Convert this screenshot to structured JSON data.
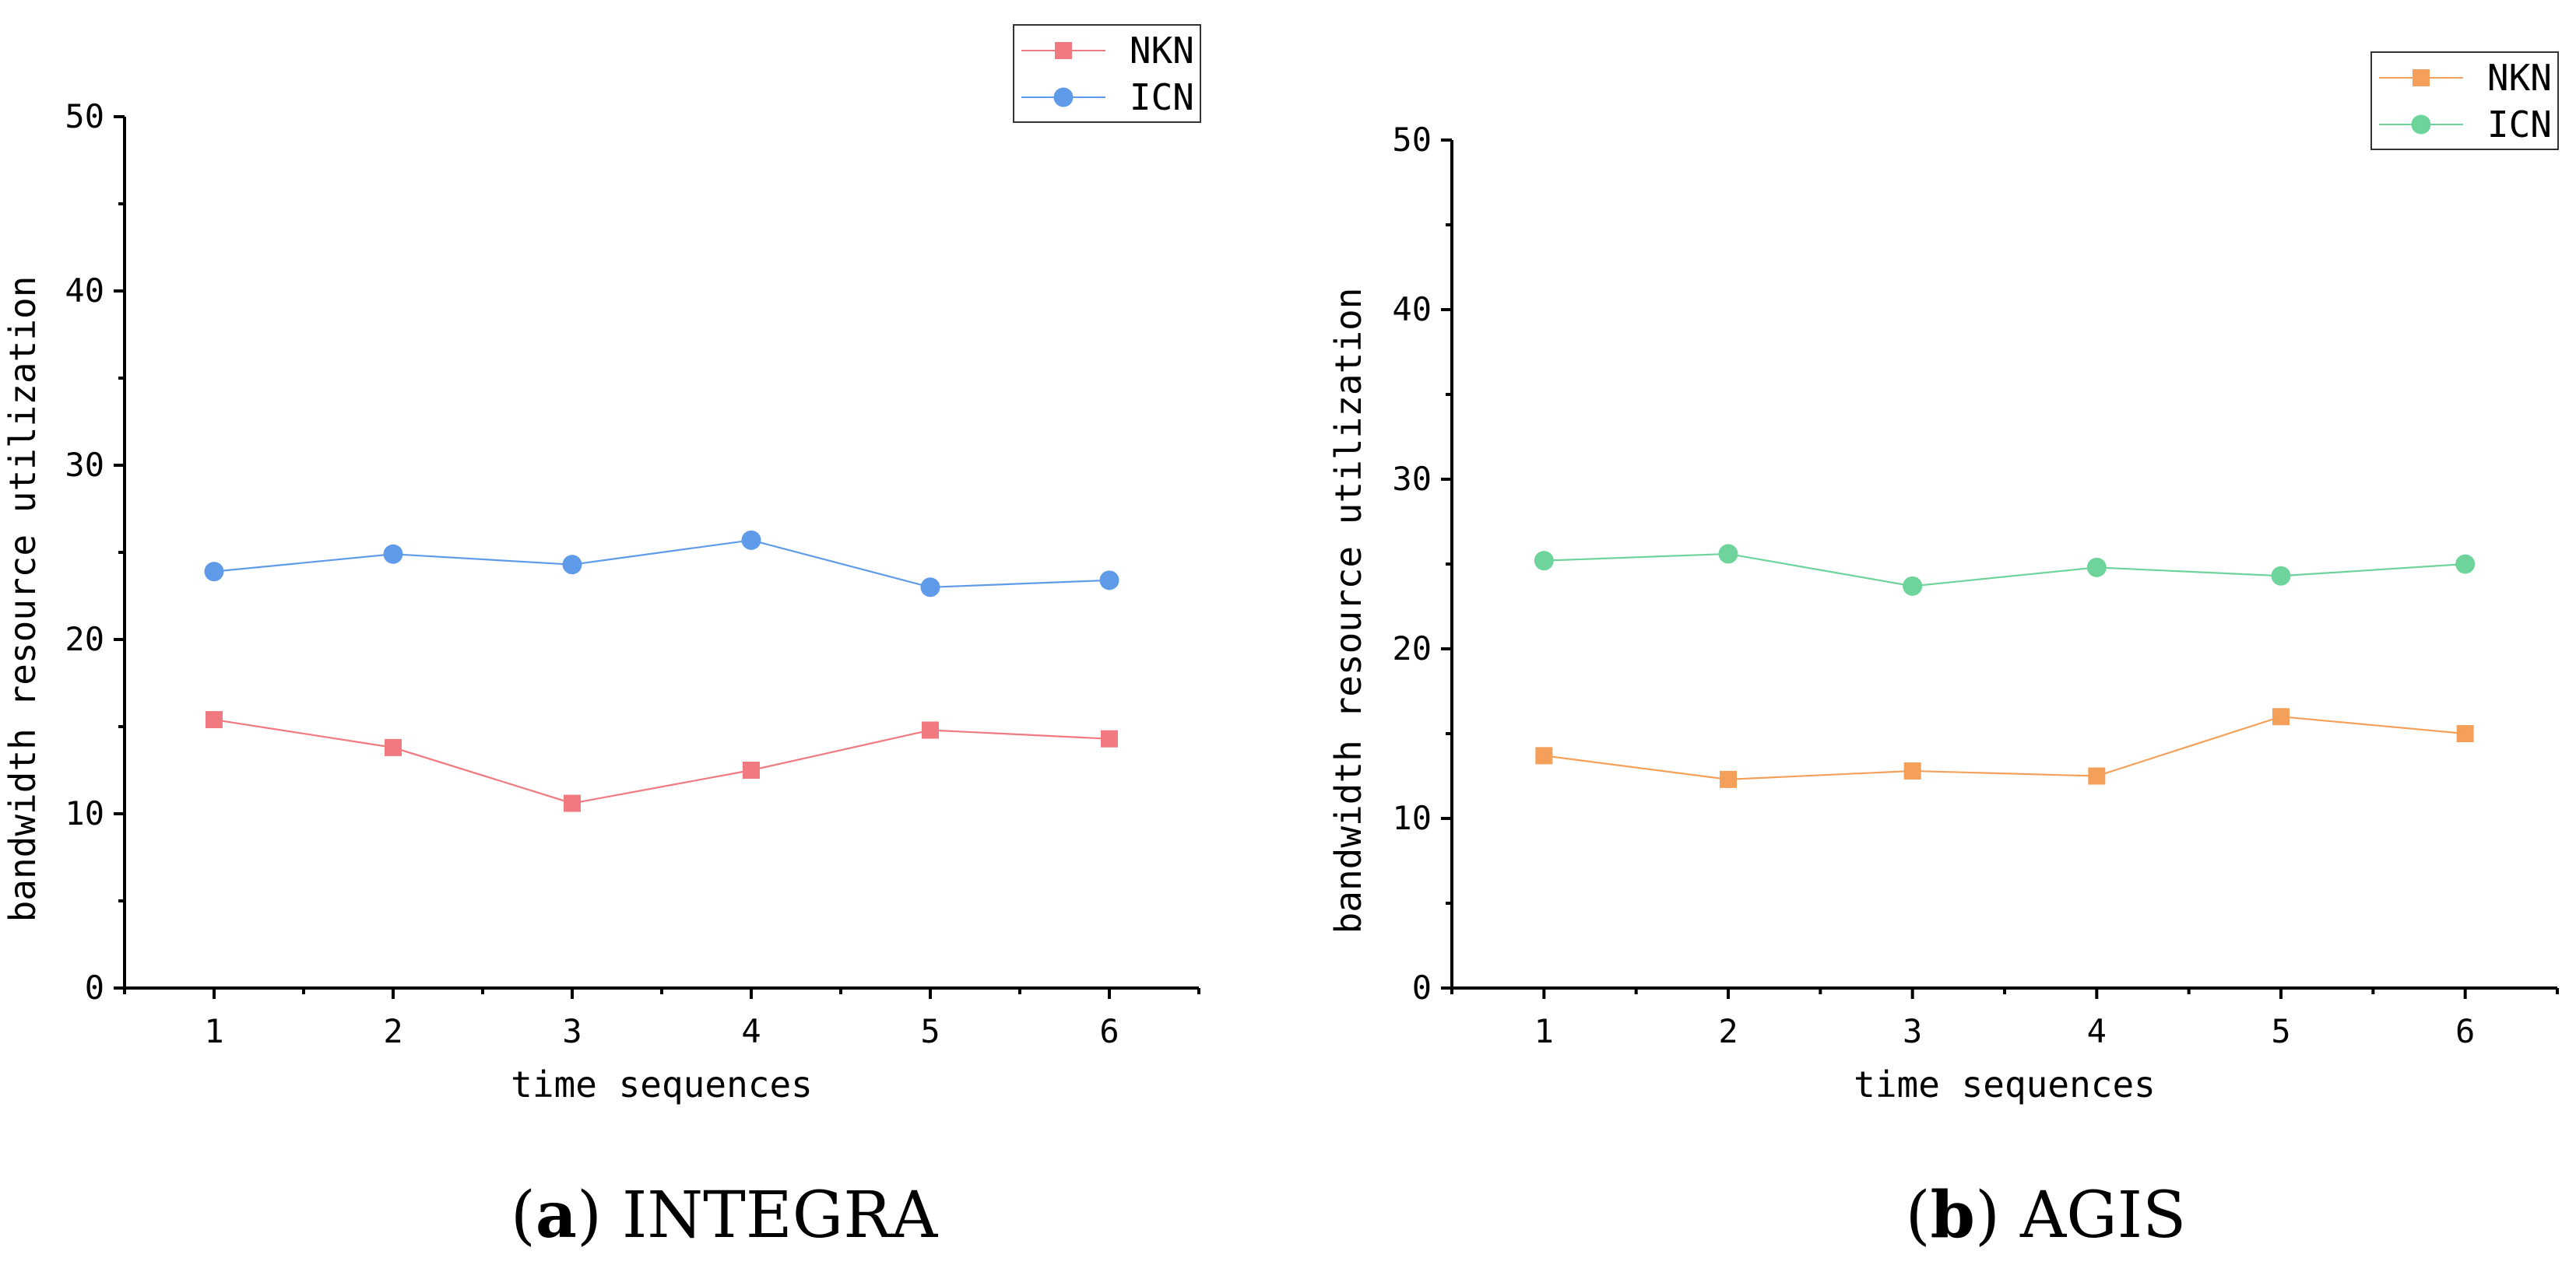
{
  "chart_data": [
    {
      "type": "line",
      "title": "",
      "caption_letter": "a",
      "caption_text": "INTEGRA",
      "xlabel": "time sequences",
      "ylabel": "bandwidth resource utilization",
      "categories": [
        "1",
        "2",
        "3",
        "4",
        "5",
        "6"
      ],
      "xlim": [
        0.5,
        6.5
      ],
      "ylim": [
        0,
        50
      ],
      "yticks": [
        0,
        10,
        20,
        30,
        40,
        50
      ],
      "grid": false,
      "legend_position": "top-right",
      "series": [
        {
          "name": "NKN",
          "marker": "square",
          "color": "#f07a80",
          "values": [
            15.4,
            13.8,
            10.6,
            12.5,
            14.8,
            14.3
          ]
        },
        {
          "name": "ICN",
          "marker": "circle",
          "color": "#5f9be8",
          "values": [
            23.9,
            24.9,
            24.3,
            25.7,
            23.0,
            23.4
          ]
        }
      ]
    },
    {
      "type": "line",
      "title": "",
      "caption_letter": "b",
      "caption_text": "AGIS",
      "xlabel": "time sequences",
      "ylabel": "bandwidth resource utilization",
      "categories": [
        "1",
        "2",
        "3",
        "4",
        "5",
        "6"
      ],
      "xlim": [
        0.5,
        6.5
      ],
      "ylim": [
        0,
        50
      ],
      "yticks": [
        0,
        10,
        20,
        30,
        40,
        50
      ],
      "grid": false,
      "legend_position": "top-right",
      "series": [
        {
          "name": "NKN",
          "marker": "square",
          "color": "#f5a05a",
          "values": [
            13.7,
            12.3,
            12.8,
            12.5,
            16.0,
            15.0
          ]
        },
        {
          "name": "ICN",
          "marker": "circle",
          "color": "#6fd39c",
          "values": [
            25.2,
            25.6,
            23.7,
            24.8,
            24.3,
            25.0
          ]
        }
      ]
    }
  ]
}
